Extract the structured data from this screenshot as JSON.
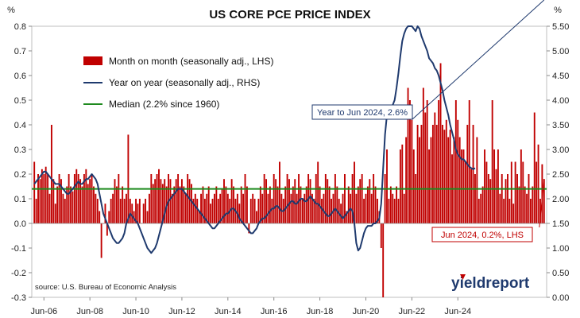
{
  "chart_data": {
    "type": "bar+line",
    "title": "US CORE PCE PRICE INDEX",
    "left_axis": {
      "unit_label": "%",
      "ylim": [
        -0.3,
        0.8
      ],
      "ticks": [
        "0.8",
        "0.7",
        "0.6",
        "0.5",
        "0.4",
        "0.3",
        "0.2",
        "0.1",
        "0.0",
        "-0.1",
        "-0.2",
        "-0.3"
      ]
    },
    "right_axis": {
      "unit_label": "%",
      "ylim": [
        0.0,
        5.5
      ],
      "ticks": [
        "5.50",
        "5.00",
        "4.50",
        "4.00",
        "3.50",
        "3.00",
        "2.50",
        "2.00",
        "1.50",
        "1.00",
        "0.50",
        "0.00"
      ]
    },
    "x_ticks": [
      "Jun-06",
      "Jun-08",
      "Jun-10",
      "Jun-12",
      "Jun-14",
      "Jun-16",
      "Jun-18",
      "Jun-20",
      "Jun-22",
      "Jun-24"
    ],
    "x_range": [
      "Jan-06",
      "Jun-24"
    ],
    "grid": false,
    "legend_placement": "top-left",
    "legend": [
      {
        "label": "Month on month (seasonally adj., LHS)",
        "kind": "bar",
        "color": "#c00000"
      },
      {
        "label": "Year on year (seasonally adj., RHS)",
        "kind": "line",
        "color": "#1f3a6e"
      },
      {
        "label": "Median (2.2% since 1960)",
        "kind": "line",
        "color": "#1e8a1e"
      }
    ],
    "series": [
      {
        "name": "Month on month (seasonally adj., LHS)",
        "axis": "left",
        "start": "Jan-06",
        "frequency": "monthly",
        "values": [
          0.25,
          0.1,
          0.2,
          0.18,
          0.22,
          0.2,
          0.23,
          0.2,
          0.12,
          0.4,
          0.18,
          0.08,
          0.15,
          0.2,
          0.18,
          0.12,
          0.1,
          0.15,
          0.2,
          0.15,
          0.13,
          0.2,
          0.22,
          0.2,
          0.18,
          0.15,
          0.2,
          0.22,
          0.16,
          0.18,
          0.2,
          0.15,
          0.12,
          0.1,
          0.05,
          -0.14,
          0.0,
          0.08,
          -0.05,
          0.05,
          0.1,
          0.12,
          0.18,
          0.15,
          0.2,
          0.1,
          0.15,
          0.1,
          0.12,
          0.36,
          0.1,
          0.08,
          0.05,
          0.1,
          0.08,
          0.1,
          0.0,
          0.08,
          0.1,
          0.05,
          0.12,
          0.2,
          0.16,
          0.18,
          0.2,
          0.22,
          0.18,
          0.16,
          0.18,
          0.15,
          0.2,
          0.18,
          0.12,
          0.15,
          0.18,
          0.2,
          0.15,
          0.18,
          0.15,
          0.12,
          0.2,
          0.18,
          0.16,
          0.1,
          0.12,
          0.1,
          0.05,
          0.12,
          0.15,
          0.1,
          0.12,
          0.15,
          0.08,
          0.1,
          0.12,
          0.15,
          0.1,
          0.12,
          0.14,
          0.18,
          0.15,
          0.12,
          0.1,
          0.18,
          0.15,
          0.1,
          0.12,
          0.08,
          0.15,
          0.12,
          0.2,
          0.15,
          -0.04,
          0.1,
          0.12,
          0.1,
          0.05,
          0.1,
          0.15,
          0.12,
          0.2,
          0.18,
          0.12,
          0.15,
          0.1,
          0.2,
          0.18,
          0.15,
          0.25,
          0.12,
          0.1,
          0.15,
          0.2,
          0.18,
          0.12,
          0.15,
          0.18,
          0.12,
          0.2,
          0.15,
          0.1,
          0.12,
          0.15,
          0.2,
          0.18,
          0.12,
          0.1,
          0.2,
          0.25,
          0.15,
          0.1,
          0.12,
          0.2,
          0.18,
          0.15,
          0.1,
          0.12,
          0.2,
          0.15,
          0.1,
          0.08,
          0.12,
          0.2,
          0.05,
          0.15,
          0.12,
          0.2,
          0.25,
          0.12,
          0.15,
          0.18,
          0.2,
          0.1,
          0.12,
          0.15,
          0.18,
          0.12,
          0.2,
          0.15,
          0.1,
          0.05,
          -0.1,
          -0.35,
          0.2,
          0.3,
          0.1,
          0.15,
          0.12,
          0.1,
          0.15,
          0.1,
          0.3,
          0.32,
          0.12,
          0.35,
          0.55,
          0.5,
          0.42,
          0.3,
          0.2,
          0.4,
          0.35,
          0.4,
          0.55,
          0.45,
          0.5,
          0.3,
          0.35,
          0.4,
          0.45,
          0.4,
          0.5,
          0.65,
          0.4,
          0.38,
          0.42,
          0.35,
          0.38,
          0.28,
          0.35,
          0.5,
          0.42,
          0.35,
          0.3,
          0.3,
          0.25,
          0.4,
          0.5,
          0.22,
          0.4,
          0.2,
          0.35,
          0.1,
          0.12,
          0.15,
          0.3,
          0.25,
          0.2,
          0.18,
          0.5,
          0.3,
          0.22,
          0.3,
          0.12,
          0.2,
          0.1,
          0.18,
          0.2,
          0.1,
          0.25,
          0.08,
          0.25,
          0.2,
          0.15,
          0.3,
          0.25,
          0.15,
          0.12,
          0.2,
          0.1,
          0.15,
          0.45,
          0.25,
          0.32,
          0.1,
          0.24,
          0.18
        ]
      },
      {
        "name": "Year on year (seasonally adj., RHS)",
        "axis": "right",
        "start": "Jan-06",
        "frequency": "monthly",
        "values": [
          2.3,
          2.35,
          2.4,
          2.45,
          2.5,
          2.55,
          2.55,
          2.5,
          2.45,
          2.4,
          2.35,
          2.3,
          2.3,
          2.3,
          2.25,
          2.2,
          2.15,
          2.1,
          2.1,
          2.15,
          2.2,
          2.25,
          2.3,
          2.35,
          2.3,
          2.3,
          2.35,
          2.4,
          2.4,
          2.45,
          2.5,
          2.45,
          2.4,
          2.3,
          2.1,
          1.9,
          1.7,
          1.6,
          1.5,
          1.4,
          1.3,
          1.2,
          1.15,
          1.1,
          1.1,
          1.15,
          1.2,
          1.3,
          1.5,
          1.6,
          1.7,
          1.65,
          1.6,
          1.55,
          1.5,
          1.4,
          1.3,
          1.2,
          1.1,
          1.0,
          0.95,
          0.9,
          0.95,
          1.0,
          1.1,
          1.25,
          1.4,
          1.55,
          1.7,
          1.85,
          1.95,
          2.0,
          2.05,
          2.1,
          2.15,
          2.2,
          2.2,
          2.2,
          2.15,
          2.1,
          2.05,
          2.0,
          1.95,
          1.9,
          1.85,
          1.8,
          1.75,
          1.7,
          1.65,
          1.6,
          1.55,
          1.5,
          1.45,
          1.4,
          1.4,
          1.45,
          1.5,
          1.55,
          1.6,
          1.65,
          1.7,
          1.7,
          1.75,
          1.8,
          1.8,
          1.75,
          1.7,
          1.6,
          1.55,
          1.5,
          1.45,
          1.4,
          1.35,
          1.3,
          1.3,
          1.35,
          1.4,
          1.5,
          1.55,
          1.6,
          1.6,
          1.65,
          1.7,
          1.75,
          1.8,
          1.8,
          1.85,
          1.85,
          1.8,
          1.75,
          1.75,
          1.8,
          1.85,
          1.9,
          1.95,
          1.95,
          1.9,
          1.9,
          1.95,
          2.0,
          2.0,
          1.95,
          1.95,
          2.0,
          2.05,
          2.0,
          1.95,
          1.9,
          1.9,
          1.85,
          1.8,
          1.75,
          1.7,
          1.65,
          1.65,
          1.7,
          1.75,
          1.8,
          1.75,
          1.7,
          1.65,
          1.6,
          1.65,
          1.7,
          1.75,
          1.8,
          1.75,
          1.5,
          1.1,
          0.95,
          1.0,
          1.15,
          1.3,
          1.4,
          1.45,
          1.45,
          1.45,
          1.5,
          1.5,
          1.55,
          1.6,
          1.9,
          2.6,
          3.3,
          3.7,
          3.75,
          3.8,
          3.9,
          4.0,
          4.25,
          4.55,
          4.9,
          5.2,
          5.35,
          5.45,
          5.55,
          5.6,
          5.5,
          5.45,
          5.4,
          5.5,
          5.45,
          5.3,
          5.2,
          5.1,
          5.0,
          4.85,
          4.8,
          4.75,
          4.65,
          4.6,
          4.5,
          4.35,
          4.2,
          4.0,
          3.85,
          3.7,
          3.5,
          3.35,
          3.2,
          3.0,
          2.9,
          2.85,
          2.8,
          2.8,
          2.75,
          2.7,
          2.65,
          2.62,
          2.6,
          2.62
        ]
      },
      {
        "name": "Median (2.2% since 1960)",
        "axis": "right",
        "constant": 2.2
      }
    ],
    "annotations": [
      {
        "text": "Year to Jun 2024, 2.6%",
        "color": "#1f3a6e",
        "target_series": "Year on year (seasonally adj., RHS)",
        "target": "last"
      },
      {
        "text": "Jun 2024, 0.2%, LHS",
        "color": "#c00000",
        "target_series": "Month on month (seasonally adj., LHS)",
        "target": "last"
      }
    ],
    "source": "source: U.S. Bureau of Economic Analysis",
    "logo": "yieldreport"
  }
}
